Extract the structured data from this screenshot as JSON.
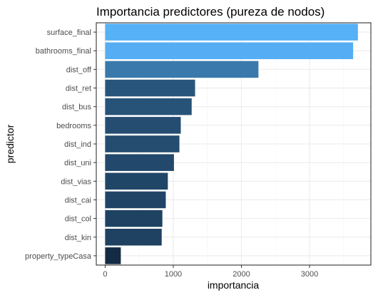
{
  "chart_data": {
    "type": "bar",
    "orientation": "horizontal",
    "title": "Importancia predictores (pureza de nodos)",
    "xlabel": "importancia",
    "ylabel": "predictor",
    "categories": [
      "surface_final",
      "bathrooms_final",
      "dist_off",
      "dist_ret",
      "dist_bus",
      "bedrooms",
      "dist_ind",
      "dist_uni",
      "dist_vias",
      "dist_cai",
      "dist_col",
      "dist_kin",
      "property_typeCasa"
    ],
    "values": [
      3710,
      3640,
      2250,
      1320,
      1270,
      1110,
      1090,
      1010,
      920,
      890,
      840,
      830,
      230
    ],
    "xlim": [
      -130,
      3900
    ],
    "xticks": [
      0,
      1000,
      2000,
      3000
    ],
    "xtick_labels": [
      "0",
      "1000",
      "2000",
      "3000"
    ],
    "grid": true,
    "legend": "none",
    "fill_gradient": {
      "low": "#132B43",
      "high": "#56B1F7"
    }
  }
}
